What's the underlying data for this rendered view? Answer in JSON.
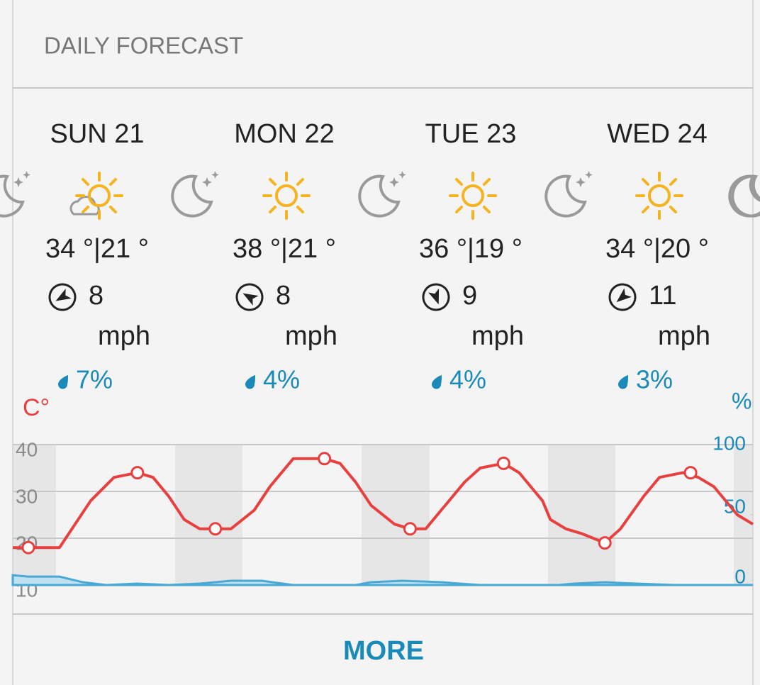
{
  "header": {
    "title": "DAILY FORECAST"
  },
  "days": [
    {
      "label": "SUN 21",
      "temps": "34 °|21 °",
      "wind": "8",
      "wind_unit": "mph",
      "precip": "7%"
    },
    {
      "label": "MON 22",
      "temps": "38 °|21 °",
      "wind": "8",
      "wind_unit": "mph",
      "precip": "4%"
    },
    {
      "label": "TUE 23",
      "temps": "36 °|19 °",
      "wind": "9",
      "wind_unit": "mph",
      "precip": "4%"
    },
    {
      "label": "WED 24",
      "temps": "34 °|20 °",
      "wind": "11",
      "wind_unit": "mph",
      "precip": "3%"
    }
  ],
  "chart": {
    "type": "line",
    "y_label": "C°",
    "y2_label": "%",
    "xlim": [
      0,
      95
    ],
    "ylim": [
      10,
      40
    ],
    "yticks": [
      10,
      20,
      30,
      40
    ],
    "y2lim": [
      0,
      100
    ],
    "y2ticks": [
      0,
      50,
      100
    ],
    "grid": true,
    "series": [
      {
        "color": "#e8403f",
        "x": [
          0,
          6,
          8,
          10,
          13,
          16,
          18,
          20,
          22,
          24,
          28,
          31,
          33,
          36,
          40,
          42,
          44,
          46,
          49,
          51,
          53,
          55,
          58,
          60,
          63,
          65,
          68,
          69,
          71,
          73,
          76,
          78,
          81,
          83,
          86,
          88,
          90,
          93,
          95
        ],
        "values": [
          18,
          18,
          23,
          28,
          33,
          34,
          33,
          29,
          24,
          22,
          22,
          26,
          31,
          37,
          37,
          36,
          32,
          27,
          23,
          22,
          22,
          26,
          32,
          35,
          36,
          34,
          28,
          24,
          22,
          21,
          19,
          22,
          29,
          33,
          34,
          33,
          31,
          25,
          23
        ]
      },
      {
        "color": "#e8403f",
        "x": [
          2,
          16,
          26,
          40,
          51,
          63,
          76,
          87
        ],
        "values": [
          18,
          34,
          22,
          37,
          22,
          36,
          19,
          34
        ]
      },
      {
        "color": "#4aa8d4",
        "axis": "y2",
        "x": [
          0,
          2,
          6,
          9,
          12,
          16,
          20,
          24,
          28,
          32,
          36,
          44,
          46,
          50,
          55,
          60,
          70,
          72,
          76,
          80,
          85,
          95
        ],
        "values": [
          7,
          6,
          6,
          2,
          0,
          1,
          0,
          1,
          3,
          3,
          0,
          0,
          2,
          3,
          2,
          0,
          0,
          1,
          2,
          1,
          0,
          0
        ]
      }
    ]
  },
  "button": {
    "label": "MORE"
  }
}
